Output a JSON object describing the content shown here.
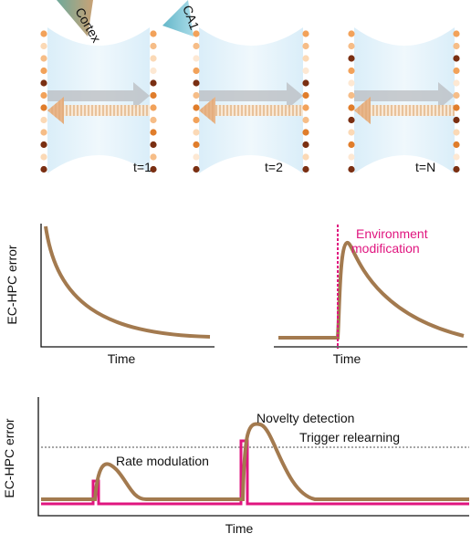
{
  "top": {
    "regions": [
      "Cortex",
      "CA1"
    ],
    "time_labels": [
      "t=1",
      "t=2",
      "t=N"
    ]
  },
  "panels": [
    {
      "y_label": "EC-HPC error",
      "x_label": "Time"
    },
    {
      "x_label": "Time",
      "annotation": [
        "Environment",
        "modification"
      ]
    },
    {
      "y_label": "EC-HPC error",
      "x_label": "Time",
      "annotations": [
        "Novelty detection",
        "Trigger relearning",
        "Rate modulation"
      ]
    }
  ]
}
